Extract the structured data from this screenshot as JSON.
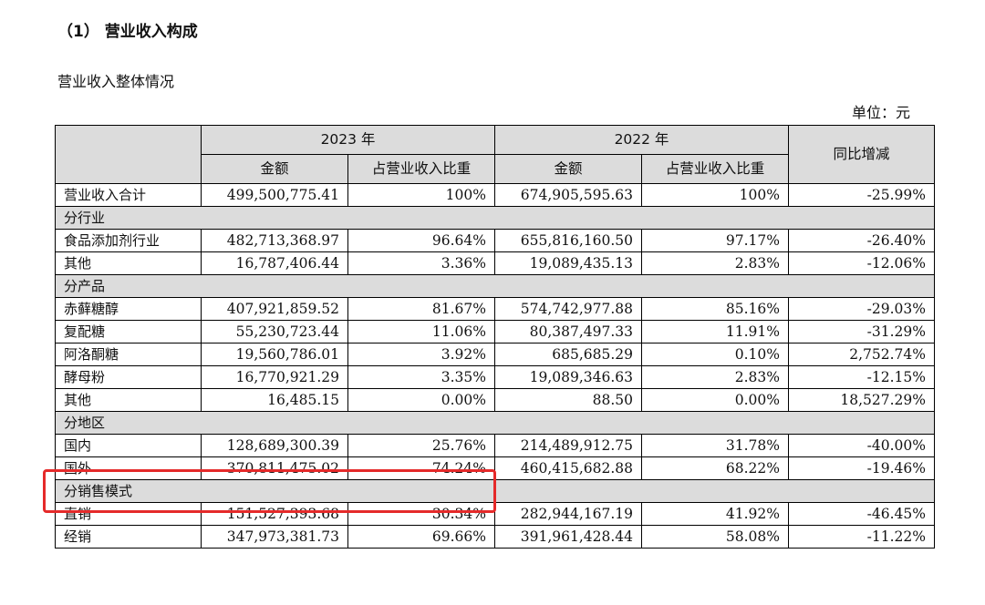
{
  "section_title": "（1） 营业收入构成",
  "subtitle": "营业收入整体情况",
  "unit": "单位：元",
  "headers": {
    "year_2023": "2023 年",
    "year_2022": "2022 年",
    "amount": "金额",
    "share": "占营业收入比重",
    "yoy": "同比增减"
  },
  "total": {
    "label": "营业收入合计",
    "amt_2023": "499,500,775.41",
    "pct_2023": "100%",
    "amt_2022": "674,905,595.63",
    "pct_2022": "100%",
    "yoy": "-25.99%"
  },
  "by_industry": {
    "title": "分行业",
    "rows": [
      {
        "label": "食品添加剂行业",
        "amt_2023": "482,713,368.97",
        "pct_2023": "96.64%",
        "amt_2022": "655,816,160.50",
        "pct_2022": "97.17%",
        "yoy": "-26.40%"
      },
      {
        "label": "其他",
        "amt_2023": "16,787,406.44",
        "pct_2023": "3.36%",
        "amt_2022": "19,089,435.13",
        "pct_2022": "2.83%",
        "yoy": "-12.06%"
      }
    ]
  },
  "by_product": {
    "title": "分产品",
    "rows": [
      {
        "label": "赤藓糖醇",
        "amt_2023": "407,921,859.52",
        "pct_2023": "81.67%",
        "amt_2022": "574,742,977.88",
        "pct_2022": "85.16%",
        "yoy": "-29.03%"
      },
      {
        "label": "复配糖",
        "amt_2023": "55,230,723.44",
        "pct_2023": "11.06%",
        "amt_2022": "80,387,497.33",
        "pct_2022": "11.91%",
        "yoy": "-31.29%"
      },
      {
        "label": "阿洛酮糖",
        "amt_2023": "19,560,786.01",
        "pct_2023": "3.92%",
        "amt_2022": "685,685.29",
        "pct_2022": "0.10%",
        "yoy": "2,752.74%"
      },
      {
        "label": "酵母粉",
        "amt_2023": "16,770,921.29",
        "pct_2023": "3.35%",
        "amt_2022": "19,089,346.63",
        "pct_2022": "2.83%",
        "yoy": "-12.15%"
      },
      {
        "label": "其他",
        "amt_2023": "16,485.15",
        "pct_2023": "0.00%",
        "amt_2022": "88.50",
        "pct_2022": "0.00%",
        "yoy": "18,527.29%"
      }
    ]
  },
  "by_region": {
    "title": "分地区",
    "rows": [
      {
        "label": "国内",
        "amt_2023": "128,689,300.39",
        "pct_2023": "25.76%",
        "amt_2022": "214,489,912.75",
        "pct_2022": "31.78%",
        "yoy": "-40.00%"
      },
      {
        "label": "国外",
        "amt_2023": "370,811,475.02",
        "pct_2023": "74.24%",
        "amt_2022": "460,415,682.88",
        "pct_2022": "68.22%",
        "yoy": "-19.46%"
      }
    ]
  },
  "by_sales_model": {
    "title": "分销售模式",
    "rows": [
      {
        "label": "直销",
        "amt_2023": "151,527,393.68",
        "pct_2023": "30.34%",
        "amt_2022": "282,944,167.19",
        "pct_2022": "41.92%",
        "yoy": "-46.45%"
      },
      {
        "label": "经销",
        "amt_2023": "347,973,381.73",
        "pct_2023": "69.66%",
        "amt_2022": "391,961,428.44",
        "pct_2022": "58.08%",
        "yoy": "-11.22%"
      }
    ]
  },
  "highlight_color": "#e52a2a"
}
